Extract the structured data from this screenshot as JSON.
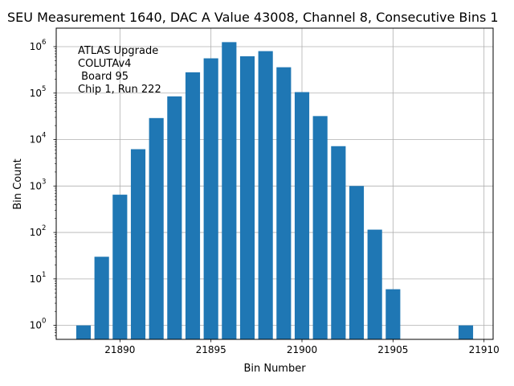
{
  "chart_data": {
    "type": "bar",
    "title": "SEU Measurement 1640, DAC A Value 43008, Channel 8, Consecutive Bins 1",
    "xlabel": "Bin Number",
    "ylabel": "Bin Count",
    "yscale": "log",
    "grid": true,
    "x": [
      21888,
      21889,
      21890,
      21891,
      21892,
      21893,
      21894,
      21895,
      21896,
      21897,
      21898,
      21899,
      21900,
      21901,
      21902,
      21903,
      21904,
      21905,
      21909
    ],
    "values": [
      1,
      30,
      650,
      6200,
      29000,
      85000,
      280000,
      560000,
      1250000,
      620000,
      800000,
      360000,
      105000,
      32000,
      7200,
      1000,
      115,
      6,
      1
    ],
    "xlim": [
      21886.5,
      21910.5
    ],
    "ylim": [
      0.5,
      2500000
    ],
    "xticks": [
      21890,
      21895,
      21900,
      21905,
      21910
    ],
    "xtick_labels": [
      "21890",
      "21895",
      "21900",
      "21905",
      "21910"
    ],
    "yticks": [
      {
        "value": 1,
        "base": "10",
        "exp": "0"
      },
      {
        "value": 10,
        "base": "10",
        "exp": "1"
      },
      {
        "value": 100,
        "base": "10",
        "exp": "2"
      },
      {
        "value": 1000,
        "base": "10",
        "exp": "3"
      },
      {
        "value": 10000,
        "base": "10",
        "exp": "4"
      },
      {
        "value": 100000,
        "base": "10",
        "exp": "5"
      },
      {
        "value": 1000000,
        "base": "10",
        "exp": "6"
      }
    ],
    "annotation": [
      "ATLAS Upgrade",
      "COLUTAv4",
      " Board 95",
      "Chip 1, Run 222"
    ],
    "bar_color": "#1f77b4",
    "grid_color": "#b0b0b0"
  }
}
